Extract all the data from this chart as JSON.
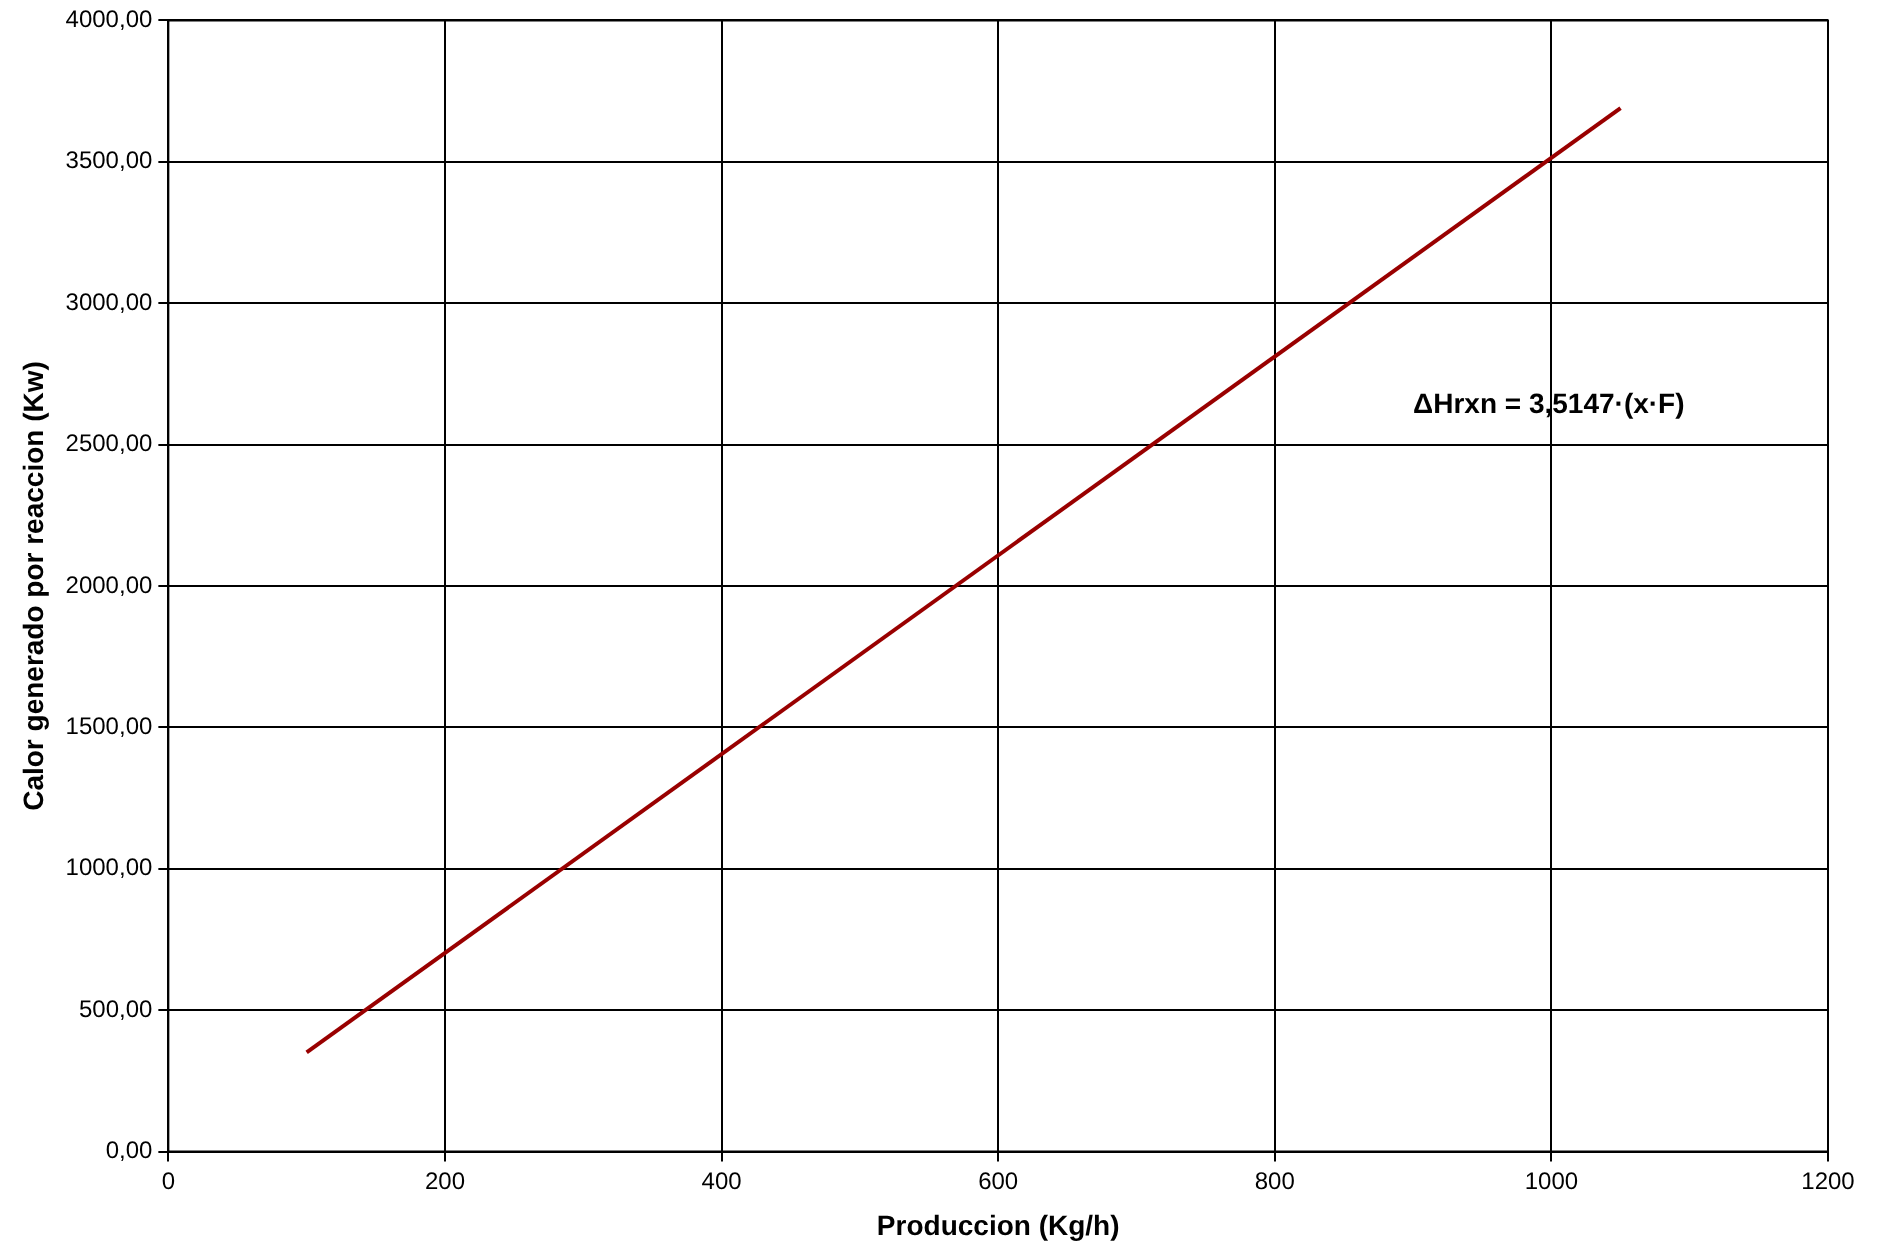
{
  "chart_data": {
    "type": "line",
    "xlabel": "Produccion (Kg/h)",
    "ylabel": "Calor generado por reaccion (Kw)",
    "annotations": [
      "ΔHrxn = 3,5147·(x·F)"
    ],
    "series": [
      {
        "color": "#990000",
        "x": [
          100,
          1050
        ],
        "values": [
          351,
          3690
        ]
      }
    ],
    "xlim": [
      0,
      1200
    ],
    "xticks": [
      0,
      200,
      400,
      600,
      800,
      1000,
      1200
    ],
    "ylim": [
      0,
      4000
    ],
    "yticks": [
      {
        "value": 0,
        "label": "0,00"
      },
      {
        "value": 500,
        "label": "500,00"
      },
      {
        "value": 1000,
        "label": "1000,00"
      },
      {
        "value": 1500,
        "label": "1500,00"
      },
      {
        "value": 2000,
        "label": "2000,00"
      },
      {
        "value": 2500,
        "label": "2500,00"
      },
      {
        "value": 3000,
        "label": "3000,00"
      },
      {
        "value": 3500,
        "label": "3500,00"
      },
      {
        "value": 4000,
        "label": "4000,00"
      }
    ],
    "grid": true,
    "legend": false,
    "marker": "none",
    "line_style": "solid"
  }
}
